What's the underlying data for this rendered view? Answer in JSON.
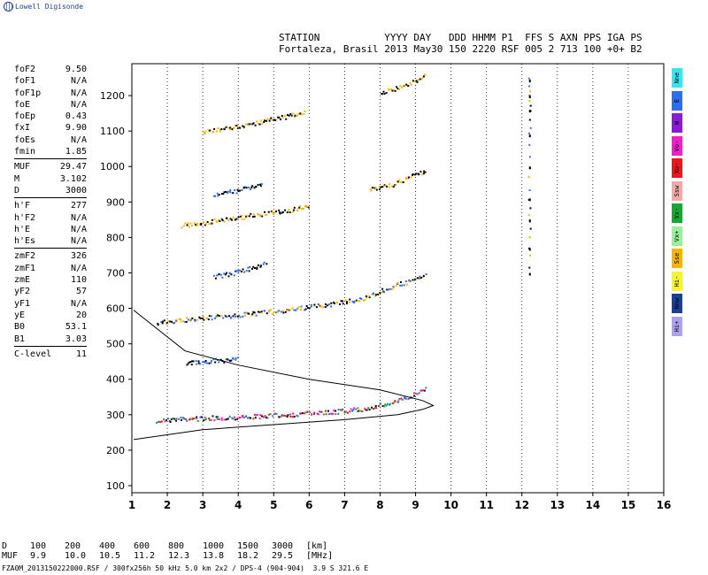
{
  "logo_text": "Lowell Digisonde",
  "header": {
    "line1": "STATION           YYYY DAY   DDD HHMM P1  FFS S AXN PPS IGA PS",
    "line2": "Fortaleza, Brasil 2013 May30 150 2220 RSF 005 2 713 100 +0+ B2"
  },
  "params": [
    {
      "label": "foF2",
      "value": "9.50"
    },
    {
      "label": "foF1",
      "value": "N/A"
    },
    {
      "label": "foF1p",
      "value": "N/A"
    },
    {
      "label": "foE",
      "value": "N/A"
    },
    {
      "label": "foEp",
      "value": "0.43"
    },
    {
      "label": "fxI",
      "value": "9.90"
    },
    {
      "label": "foEs",
      "value": "N/A"
    },
    {
      "label": "fmin",
      "value": "1.85"
    },
    {
      "sep": true
    },
    {
      "label": "MUF",
      "value": "29.47"
    },
    {
      "label": "M",
      "value": "3.102"
    },
    {
      "label": "D",
      "value": "3000"
    },
    {
      "sep": true
    },
    {
      "label": "h'F",
      "value": "277"
    },
    {
      "label": "h'F2",
      "value": "N/A"
    },
    {
      "label": "h'E",
      "value": "N/A"
    },
    {
      "label": "h'Es",
      "value": "N/A"
    },
    {
      "sep": true
    },
    {
      "label": "zmF2",
      "value": "326"
    },
    {
      "label": "zmF1",
      "value": "N/A"
    },
    {
      "label": "zmE",
      "value": "110"
    },
    {
      "label": "yF2",
      "value": "57"
    },
    {
      "label": "yF1",
      "value": "N/A"
    },
    {
      "label": "yE",
      "value": "20"
    },
    {
      "label": "B0",
      "value": "53.1"
    },
    {
      "label": "B1",
      "value": "3.03"
    },
    {
      "sep": true
    },
    {
      "label": "C-level",
      "value": "11"
    }
  ],
  "legend": [
    {
      "label": "Nne",
      "color": "#33e6f0"
    },
    {
      "label": "E",
      "color": "#2e6cf0"
    },
    {
      "label": "W",
      "color": "#8a1bd6"
    },
    {
      "label": "Vo-",
      "color": "#f020c8"
    },
    {
      "label": "Xo-",
      "color": "#e8181c"
    },
    {
      "label": "Ssw",
      "color": "#f4a8a8"
    },
    {
      "label": "Vx-",
      "color": "#16a830"
    },
    {
      "label": "Vx+",
      "color": "#9af09a"
    },
    {
      "label": "Sse",
      "color": "#f6b400"
    },
    {
      "label": "Hi-",
      "color": "#f4f430"
    },
    {
      "label": "Nnw",
      "color": "#1a3f96"
    },
    {
      "label": "Hi+",
      "color": "#b0a0f0"
    }
  ],
  "d_table": {
    "row1_label": "D",
    "row1": [
      "100",
      "200",
      "400",
      "600",
      "800",
      "1000",
      "1500",
      "3000",
      "[km]"
    ],
    "row2_label": "MUF",
    "row2": [
      "9.9",
      "10.0",
      "10.5",
      "11.2",
      "12.3",
      "13.8",
      "18.2",
      "29.5",
      "[MHz]"
    ]
  },
  "footer": "FZA0M_2013150222000.RSF / 300fx256h 50 kHz 5.0 km 2x2 / DPS-4 (904-904)  3.9 S 321.6 E",
  "chart_data": {
    "type": "scatter",
    "xlim": [
      1,
      16
    ],
    "ylim": [
      80,
      1290
    ],
    "x_ticks": [
      "1",
      "2",
      "3",
      "4",
      "5",
      "6",
      "7",
      "8",
      "9",
      "10",
      "11",
      "12",
      "13",
      "14",
      "15",
      "16"
    ],
    "y_ticks": [
      "100",
      "200",
      "300",
      "400",
      "500",
      "600",
      "700",
      "800",
      "900",
      "1000",
      "1100",
      "1200"
    ],
    "grid": "dotted vertical",
    "traces": [
      {
        "name": "F-o",
        "points": [
          [
            1.7,
            285
          ],
          [
            2.5,
            290
          ],
          [
            3.5,
            293
          ],
          [
            4.5,
            297
          ],
          [
            5.5,
            302
          ],
          [
            6.5,
            308
          ],
          [
            7.5,
            318
          ],
          [
            8.0,
            328
          ],
          [
            8.5,
            340
          ],
          [
            8.8,
            352
          ],
          [
            9.1,
            368
          ],
          [
            9.3,
            382
          ]
        ],
        "colors": [
          "#f020c8",
          "#16a830",
          "#2e6cf0",
          "#e8181c",
          "#000000"
        ]
      },
      {
        "name": "2F-o",
        "points": [
          [
            1.7,
            560
          ],
          [
            2.5,
            570
          ],
          [
            3.5,
            578
          ],
          [
            4.5,
            588
          ],
          [
            5.5,
            598
          ],
          [
            6.5,
            612
          ],
          [
            7.5,
            628
          ],
          [
            8.0,
            650
          ],
          [
            8.5,
            668
          ],
          [
            9.0,
            685
          ],
          [
            9.3,
            695
          ]
        ],
        "colors": [
          "#f6b400",
          "#000000",
          "#2e6cf0"
        ]
      },
      {
        "name": "3F-o",
        "points": [
          [
            2.4,
            835
          ],
          [
            3.5,
            850
          ],
          [
            4.5,
            865
          ],
          [
            5.5,
            880
          ],
          [
            6.0,
            890
          ]
        ],
        "colors": [
          "#f6b400",
          "#000000"
        ]
      },
      {
        "name": "3F-o-high",
        "points": [
          [
            7.7,
            935
          ],
          [
            8.3,
            950
          ],
          [
            8.8,
            970
          ],
          [
            9.3,
            990
          ]
        ],
        "colors": [
          "#f6b400",
          "#000000"
        ]
      },
      {
        "name": "4F-o",
        "points": [
          [
            3.0,
            1100
          ],
          [
            4.0,
            1115
          ],
          [
            5.0,
            1135
          ],
          [
            5.9,
            1155
          ]
        ],
        "colors": [
          "#f6b400",
          "#000000"
        ]
      },
      {
        "name": "4F-o-high",
        "points": [
          [
            8.0,
            1210
          ],
          [
            8.6,
            1225
          ],
          [
            9.1,
            1250
          ],
          [
            9.3,
            1265
          ]
        ],
        "colors": [
          "#f6b400",
          "#000000"
        ]
      },
      {
        "name": "F-x-spread-1",
        "points": [
          [
            2.5,
            448
          ],
          [
            3.0,
            452
          ],
          [
            3.5,
            455
          ],
          [
            4.0,
            458
          ]
        ],
        "colors": [
          "#2e6cf0",
          "#000000"
        ]
      },
      {
        "name": "F-x-spread-2",
        "points": [
          [
            3.3,
            690
          ],
          [
            3.8,
            700
          ],
          [
            4.4,
            715
          ],
          [
            4.8,
            735
          ]
        ],
        "colors": [
          "#2e6cf0",
          "#000000"
        ]
      },
      {
        "name": "F-x-spread-3",
        "points": [
          [
            3.3,
            920
          ],
          [
            4.0,
            935
          ],
          [
            4.7,
            950
          ]
        ],
        "colors": [
          "#2e6cf0",
          "#000000"
        ]
      },
      {
        "name": "interference-12.2",
        "points": [
          [
            12.2,
            1245
          ],
          [
            12.2,
            1200
          ],
          [
            12.2,
            1160
          ],
          [
            12.2,
            1090
          ],
          [
            12.2,
            1000
          ],
          [
            12.2,
            910
          ],
          [
            12.2,
            850
          ],
          [
            12.2,
            770
          ],
          [
            12.2,
            700
          ]
        ],
        "colors": [
          "#000000",
          "#2e6cf0",
          "#f6b400"
        ]
      }
    ],
    "profile": {
      "name": "electron density profile",
      "points": [
        [
          1.05,
          230
        ],
        [
          3,
          258
        ],
        [
          5,
          272
        ],
        [
          7,
          286
        ],
        [
          8.5,
          300
        ],
        [
          9.2,
          315
        ],
        [
          9.5,
          326
        ],
        [
          9.2,
          340
        ],
        [
          8,
          370
        ],
        [
          6,
          400
        ],
        [
          4,
          440
        ],
        [
          2.5,
          480
        ],
        [
          1.05,
          595
        ]
      ]
    }
  }
}
